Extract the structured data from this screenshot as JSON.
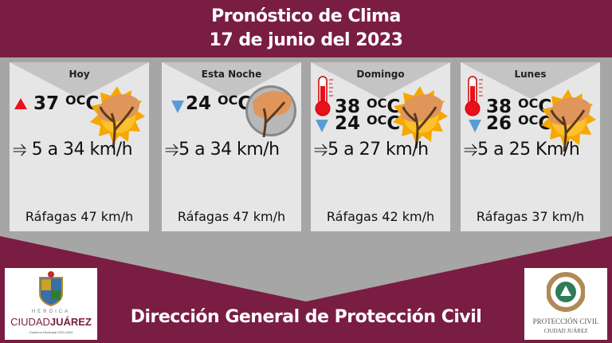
{
  "header": {
    "title": "Pronóstico de Clima",
    "date": "17 de junio del 2023"
  },
  "cards": [
    {
      "day": "Hoy",
      "temp": "37",
      "unit": "OC",
      "indicator": "high",
      "wind": "5 a 34 km/h",
      "gusts": "Ráfagas 47 km/h",
      "icon": "windy-sun-icon"
    },
    {
      "day": "Esta Noche",
      "temp": "24",
      "unit": "OC",
      "indicator": "low",
      "wind": "5 a 34 km/h",
      "gusts": "Ráfagas 47 km/h",
      "icon": "windy-moon-icon"
    },
    {
      "day": "Domingo",
      "high": "38",
      "low": "24",
      "unit": "OC",
      "wind": "5 a 27 km/h",
      "gusts": "Ráfagas 42 km/h",
      "icon": "windy-sun-icon"
    },
    {
      "day": "Lunes",
      "high": "38",
      "low": "26",
      "unit": "OC",
      "wind": "5 a 25 Km/h",
      "gusts": "Ráfagas 37 km/h",
      "icon": "windy-sun-icon"
    }
  ],
  "footer": {
    "title": "Dirección General de Protección Civil"
  },
  "logos": {
    "left": {
      "line1": "HEROICA",
      "line2": "CIUDAD",
      "line2b": "JUÁREZ",
      "line3": "Gobierno Municipal 2021-2024"
    },
    "right": {
      "line1": "PROTECCIÓN CIVIL",
      "line2": "CIUDAD JUÁREZ"
    }
  },
  "colors": {
    "maroon": "#7a1d42",
    "panel": "#a6a6a6",
    "card": "#e6e6e6",
    "high": "#e8101a",
    "low": "#5b9bd5"
  }
}
